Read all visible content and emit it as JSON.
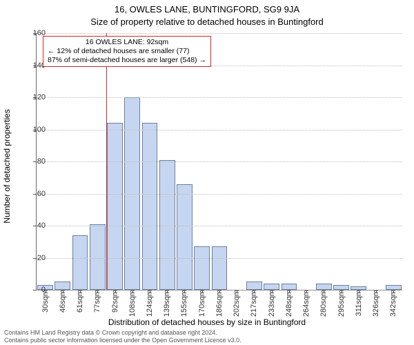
{
  "title_line1": "16, OWLES LANE, BUNTINGFORD, SG9 9JA",
  "title_line2": "Size of property relative to detached houses in Buntingford",
  "ylabel": "Number of detached properties",
  "xlabel": "Distribution of detached houses by size in Buntingford",
  "chart": {
    "type": "histogram",
    "bar_fill": "#c7d6f0",
    "bar_stroke": "#6b7fa0",
    "grid_color": "#bbbbbb",
    "axis_color": "#666666",
    "background_color": "#ffffff",
    "yticks": [
      0,
      20,
      40,
      60,
      80,
      100,
      120,
      140,
      160
    ],
    "ylim_max": 160,
    "categories": [
      "30sqm",
      "46sqm",
      "61sqm",
      "77sqm",
      "92sqm",
      "108sqm",
      "124sqm",
      "139sqm",
      "155sqm",
      "170sqm",
      "186sqm",
      "202sqm",
      "217sqm",
      "233sqm",
      "248sqm",
      "264sqm",
      "280sqm",
      "295sqm",
      "311sqm",
      "326sqm",
      "342sqm"
    ],
    "values": [
      3,
      5,
      34,
      41,
      104,
      120,
      104,
      81,
      66,
      27,
      27,
      0,
      5,
      4,
      4,
      0,
      4,
      3,
      2,
      0,
      3
    ],
    "marker_index": 4,
    "marker_color": "#d62728",
    "label_fontsize": 11,
    "title_fontsize": 13
  },
  "annotation": {
    "title": "16 OWLES LANE: 92sqm",
    "line2": "← 12% of detached houses are smaller (77)",
    "line3": "87% of semi-detached houses are larger (548) →",
    "border_color": "#d62728"
  },
  "footer": {
    "line1": "Contains HM Land Registry data © Crown copyright and database right 2024.",
    "line2": "Contains public sector information licensed under the Open Government Licence v3.0."
  }
}
